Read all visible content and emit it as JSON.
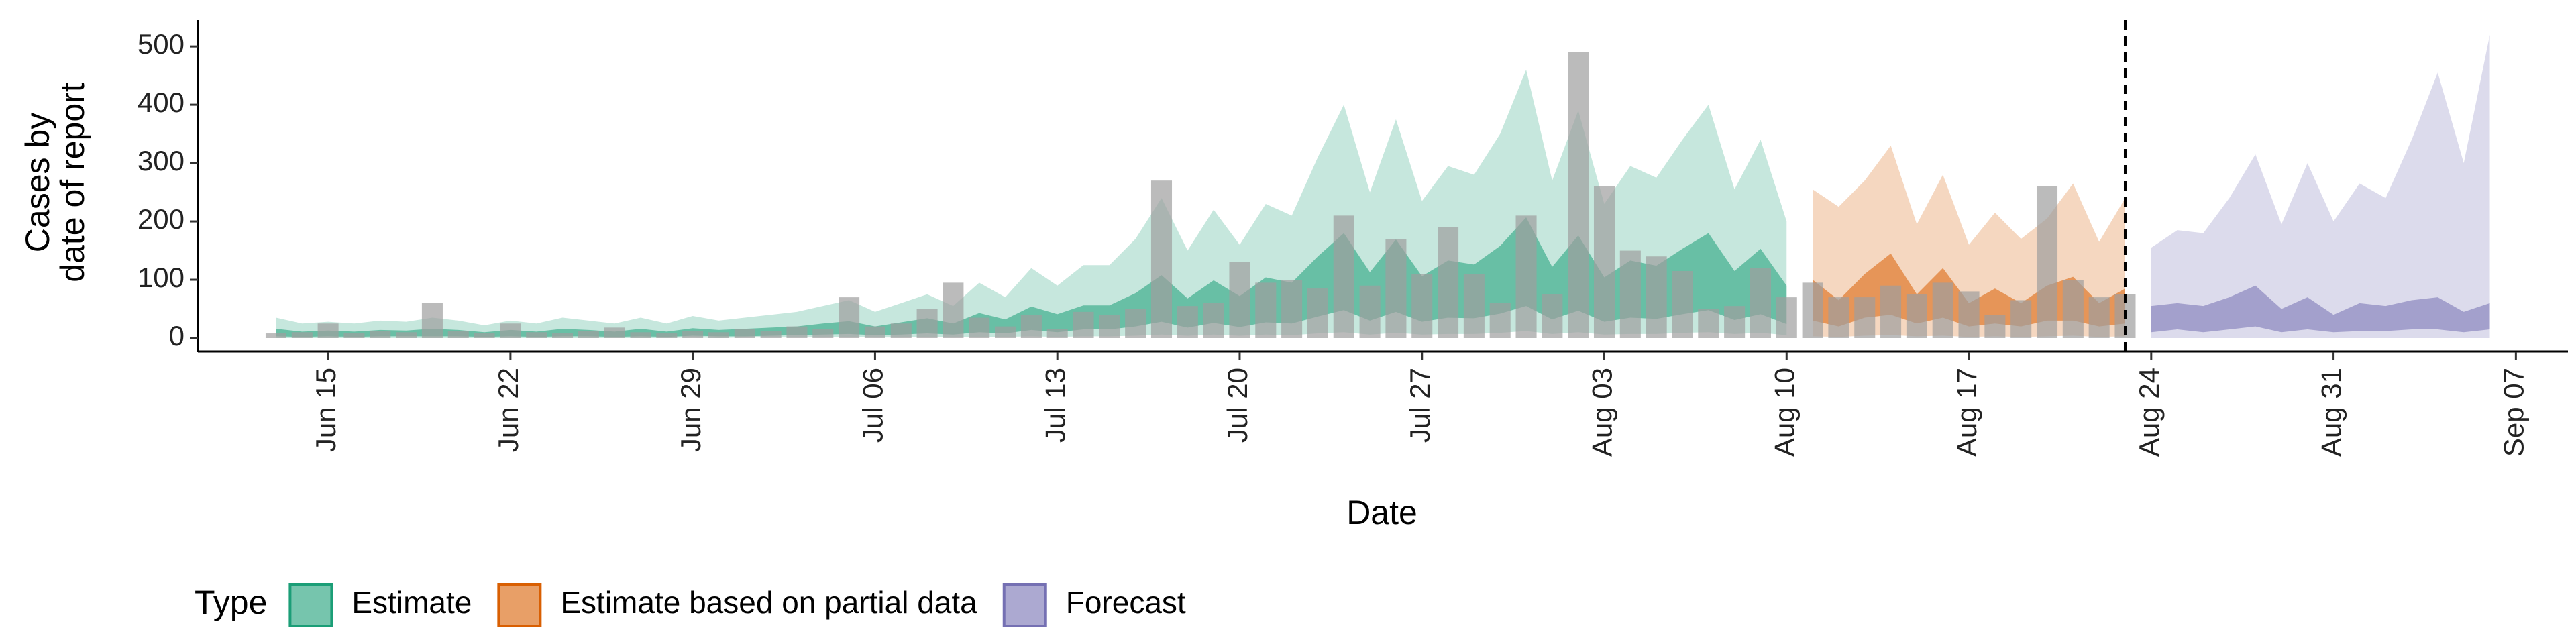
{
  "chart_data": {
    "type": "ribbon",
    "xlabel": "Date",
    "ylabel": [
      "Cases by",
      "date of report"
    ],
    "legend_title": "Type",
    "xlim": [
      "Jun 10",
      "Sep 09"
    ],
    "xticks": [
      "Jun 15",
      "Jun 22",
      "Jun 29",
      "Jul 06",
      "Jul 13",
      "Jul 20",
      "Jul 27",
      "Aug 03",
      "Aug 10",
      "Aug 17",
      "Aug 24",
      "Aug 31",
      "Sep 07"
    ],
    "ylim": [
      -23,
      545
    ],
    "yticks": [
      0,
      100,
      200,
      300,
      400,
      500
    ],
    "vline": "Aug 23",
    "bars": {
      "color": "#9e9e9e",
      "x": [
        "Jun 13",
        "Jun 14",
        "Jun 15",
        "Jun 16",
        "Jun 17",
        "Jun 18",
        "Jun 19",
        "Jun 20",
        "Jun 21",
        "Jun 22",
        "Jun 23",
        "Jun 24",
        "Jun 25",
        "Jun 26",
        "Jun 27",
        "Jun 28",
        "Jun 29",
        "Jun 30",
        "Jul 01",
        "Jul 02",
        "Jul 03",
        "Jul 04",
        "Jul 05",
        "Jul 06",
        "Jul 07",
        "Jul 08",
        "Jul 09",
        "Jul 10",
        "Jul 11",
        "Jul 12",
        "Jul 13",
        "Jul 14",
        "Jul 15",
        "Jul 16",
        "Jul 17",
        "Jul 18",
        "Jul 19",
        "Jul 20",
        "Jul 21",
        "Jul 22",
        "Jul 23",
        "Jul 24",
        "Jul 25",
        "Jul 26",
        "Jul 27",
        "Jul 28",
        "Jul 29",
        "Jul 30",
        "Jul 31",
        "Aug 01",
        "Aug 02",
        "Aug 03",
        "Aug 04",
        "Aug 05",
        "Aug 06",
        "Aug 07",
        "Aug 08",
        "Aug 09",
        "Aug 10",
        "Aug 11",
        "Aug 12",
        "Aug 13",
        "Aug 14",
        "Aug 15",
        "Aug 16",
        "Aug 17",
        "Aug 18",
        "Aug 19",
        "Aug 20",
        "Aug 21",
        "Aug 22",
        "Aug 23"
      ],
      "values": [
        8,
        10,
        25,
        8,
        12,
        10,
        60,
        12,
        8,
        25,
        10,
        8,
        12,
        18,
        10,
        8,
        12,
        10,
        15,
        12,
        20,
        15,
        70,
        20,
        25,
        50,
        95,
        35,
        20,
        40,
        15,
        45,
        40,
        50,
        270,
        55,
        60,
        130,
        95,
        100,
        85,
        210,
        90,
        170,
        110,
        190,
        110,
        60,
        210,
        75,
        490,
        260,
        150,
        140,
        115,
        50,
        55,
        120,
        70,
        95,
        70,
        70,
        90,
        75,
        95,
        80,
        40,
        65,
        260,
        100,
        70,
        75
      ]
    },
    "series": [
      {
        "name": "Estimate",
        "color": "#1b9e77",
        "x": [
          "Jun 13",
          "Jun 14",
          "Jun 15",
          "Jun 16",
          "Jun 17",
          "Jun 18",
          "Jun 19",
          "Jun 20",
          "Jun 21",
          "Jun 22",
          "Jun 23",
          "Jun 24",
          "Jun 25",
          "Jun 26",
          "Jun 27",
          "Jun 28",
          "Jun 29",
          "Jun 30",
          "Jul 01",
          "Jul 02",
          "Jul 03",
          "Jul 04",
          "Jul 05",
          "Jul 06",
          "Jul 07",
          "Jul 08",
          "Jul 09",
          "Jul 10",
          "Jul 11",
          "Jul 12",
          "Jul 13",
          "Jul 14",
          "Jul 15",
          "Jul 16",
          "Jul 17",
          "Jul 18",
          "Jul 19",
          "Jul 20",
          "Jul 21",
          "Jul 22",
          "Jul 23",
          "Jul 24",
          "Jul 25",
          "Jul 26",
          "Jul 27",
          "Jul 28",
          "Jul 29",
          "Jul 30",
          "Jul 31",
          "Aug 01",
          "Aug 02",
          "Aug 03",
          "Aug 04",
          "Aug 05",
          "Aug 06",
          "Aug 07",
          "Aug 08",
          "Aug 09",
          "Aug 10"
        ],
        "lower90": [
          0,
          0,
          0,
          0,
          0,
          0,
          0,
          0,
          0,
          0,
          0,
          0,
          0,
          0,
          0,
          0,
          1,
          0,
          1,
          1,
          1,
          1,
          2,
          1,
          1,
          2,
          1,
          2,
          2,
          3,
          2,
          3,
          3,
          4,
          6,
          4,
          6,
          4,
          6,
          5,
          8,
          10,
          6,
          9,
          6,
          7,
          7,
          9,
          12,
          7,
          10,
          6,
          7,
          7,
          9,
          10,
          7,
          9,
          5
        ],
        "upper90": [
          35,
          25,
          28,
          25,
          30,
          28,
          35,
          30,
          22,
          30,
          25,
          35,
          30,
          25,
          35,
          25,
          38,
          30,
          35,
          40,
          45,
          55,
          65,
          45,
          60,
          75,
          55,
          95,
          70,
          120,
          90,
          125,
          125,
          170,
          240,
          150,
          220,
          160,
          230,
          210,
          310,
          400,
          250,
          375,
          235,
          295,
          280,
          350,
          460,
          270,
          390,
          230,
          295,
          275,
          340,
          400,
          255,
          340,
          200
        ],
        "lower50": [
          3,
          2,
          3,
          2,
          3,
          3,
          3,
          3,
          2,
          3,
          2,
          3,
          3,
          2,
          3,
          2,
          4,
          3,
          3,
          4,
          5,
          6,
          7,
          5,
          6,
          8,
          6,
          10,
          8,
          14,
          10,
          15,
          15,
          20,
          28,
          18,
          26,
          19,
          27,
          25,
          37,
          48,
          30,
          45,
          28,
          35,
          34,
          42,
          55,
          32,
          47,
          28,
          35,
          33,
          41,
          48,
          31,
          41,
          24
        ],
        "upper50": [
          16,
          11,
          13,
          11,
          14,
          13,
          16,
          14,
          10,
          14,
          11,
          16,
          14,
          11,
          16,
          11,
          17,
          14,
          16,
          18,
          20,
          25,
          29,
          20,
          27,
          34,
          25,
          43,
          32,
          54,
          41,
          56,
          56,
          77,
          108,
          68,
          99,
          72,
          104,
          95,
          140,
          180,
          113,
          169,
          106,
          133,
          126,
          158,
          207,
          122,
          176,
          104,
          133,
          124,
          153,
          180,
          115,
          153,
          90
        ]
      },
      {
        "name": "Estimate based on partial data",
        "color": "#d95f02",
        "x": [
          "Aug 11",
          "Aug 12",
          "Aug 13",
          "Aug 14",
          "Aug 15",
          "Aug 16",
          "Aug 17",
          "Aug 18",
          "Aug 19",
          "Aug 20",
          "Aug 21",
          "Aug 22",
          "Aug 23"
        ],
        "lower90": [
          3,
          2,
          4,
          5,
          3,
          4,
          2,
          3,
          2,
          3,
          4,
          2,
          3
        ],
        "upper90": [
          255,
          225,
          270,
          330,
          195,
          280,
          160,
          215,
          170,
          205,
          265,
          165,
          240
        ],
        "lower50": [
          30,
          20,
          35,
          40,
          25,
          35,
          20,
          25,
          20,
          30,
          30,
          20,
          25
        ],
        "upper50": [
          100,
          65,
          110,
          145,
          75,
          120,
          60,
          85,
          60,
          90,
          105,
          60,
          85
        ]
      },
      {
        "name": "Forecast",
        "color": "#7570b3",
        "x": [
          "Aug 24",
          "Aug 25",
          "Aug 26",
          "Aug 27",
          "Aug 28",
          "Aug 29",
          "Aug 30",
          "Aug 31",
          "Sep 01",
          "Sep 02",
          "Sep 03",
          "Sep 04",
          "Sep 05",
          "Sep 06"
        ],
        "lower90": [
          0,
          0,
          0,
          0,
          0,
          0,
          0,
          0,
          0,
          0,
          0,
          0,
          0,
          0
        ],
        "upper90": [
          155,
          185,
          180,
          240,
          315,
          195,
          300,
          200,
          265,
          240,
          340,
          455,
          300,
          520
        ],
        "lower50": [
          10,
          15,
          10,
          15,
          20,
          10,
          15,
          10,
          12,
          12,
          15,
          15,
          10,
          15
        ],
        "upper50": [
          55,
          60,
          55,
          70,
          90,
          50,
          70,
          40,
          60,
          55,
          65,
          70,
          45,
          60
        ]
      }
    ]
  }
}
